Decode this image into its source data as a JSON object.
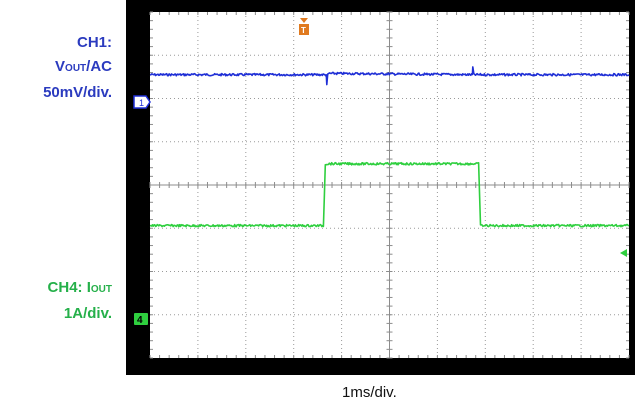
{
  "channels": {
    "ch1": {
      "title": "CH1:",
      "signal_main": "V",
      "signal_sub": "OUT",
      "signal_suffix": "/AC",
      "scale": "50mV/div.",
      "marker": "1",
      "color": "#1f2fd6"
    },
    "ch4": {
      "title": "CH4: ",
      "signal_main": "I",
      "signal_sub": "OUT",
      "scale": "1A/div.",
      "marker": "4",
      "color": "#2fcf3f"
    }
  },
  "trigger_marker": "T",
  "timebase": "1ms/div.",
  "chart_data": {
    "type": "line",
    "x_unit": "div",
    "xlim": [
      0,
      10
    ],
    "ylim": [
      -4,
      4
    ],
    "grid": true,
    "series": [
      {
        "name": "CH1: VOUT/AC",
        "x": [
          0,
          3.68,
          3.69,
          3.71,
          3.73,
          6.73,
          6.74,
          6.76,
          6.78,
          10
        ],
        "y": [
          2.55,
          2.55,
          2.3,
          2.55,
          2.58,
          2.55,
          2.72,
          2.55,
          2.55,
          2.55
        ]
      },
      {
        "name": "CH4: IOUT",
        "x": [
          0,
          3.62,
          3.66,
          6.86,
          6.9,
          10
        ],
        "y": [
          -0.94,
          -0.94,
          0.49,
          0.49,
          -0.94,
          -0.94
        ]
      }
    ]
  }
}
